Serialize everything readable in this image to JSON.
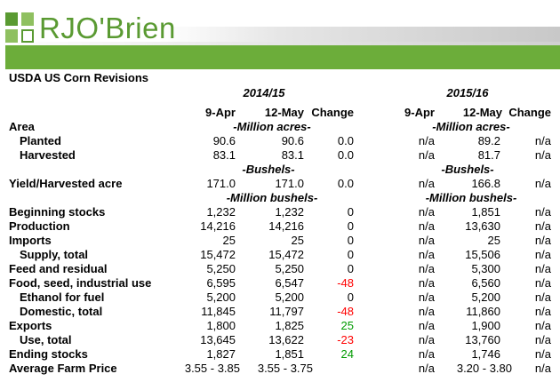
{
  "brand": {
    "name": "RJO'Brien",
    "colors": {
      "green": "#6cad3a",
      "negative": "#ff0000",
      "positive": "#009a00"
    }
  },
  "table": {
    "title": "USDA US Corn Revisions",
    "year1": "2014/15",
    "year2": "2015/16",
    "col_headers": {
      "c1": "9-Apr",
      "c2": "12-May",
      "c3": "Change",
      "c4": "9-Apr",
      "c5": "12-May",
      "c6": "Change"
    },
    "units": {
      "acres": "-Million acres-",
      "bushels": "-Bushels-",
      "mbushels": "-Million bushels-"
    },
    "rows": {
      "area": {
        "label": "Area"
      },
      "planted": {
        "label": "Planted",
        "c1": "90.6",
        "c2": "90.6",
        "c3": "0.0",
        "c4": "n/a",
        "c5": "89.2",
        "c6": "n/a"
      },
      "harvested": {
        "label": "Harvested",
        "c1": "83.1",
        "c2": "83.1",
        "c3": "0.0",
        "c4": "n/a",
        "c5": "81.7",
        "c6": "n/a"
      },
      "yield": {
        "label": "Yield/Harvested acre",
        "c1": "171.0",
        "c2": "171.0",
        "c3": "0.0",
        "c4": "n/a",
        "c5": "166.8",
        "c6": "n/a"
      },
      "beginning": {
        "label": "Beginning stocks",
        "c1": "1,232",
        "c2": "1,232",
        "c3": "0",
        "c4": "n/a",
        "c5": "1,851",
        "c6": "n/a"
      },
      "production": {
        "label": "Production",
        "c1": "14,216",
        "c2": "14,216",
        "c3": "0",
        "c4": "n/a",
        "c5": "13,630",
        "c6": "n/a"
      },
      "imports": {
        "label": "Imports",
        "c1": "25",
        "c2": "25",
        "c3": "0",
        "c4": "n/a",
        "c5": "25",
        "c6": "n/a"
      },
      "supply": {
        "label": "Supply, total",
        "c1": "15,472",
        "c2": "15,472",
        "c3": "0",
        "c4": "n/a",
        "c5": "15,506",
        "c6": "n/a"
      },
      "feed": {
        "label": "Feed and residual",
        "c1": "5,250",
        "c2": "5,250",
        "c3": "0",
        "c4": "n/a",
        "c5": "5,300",
        "c6": "n/a"
      },
      "fsi": {
        "label": "Food, seed, industrial use",
        "c1": "6,595",
        "c2": "6,547",
        "c3": "-48",
        "c4": "n/a",
        "c5": "6,560",
        "c6": "n/a"
      },
      "ethanol": {
        "label": "Ethanol for fuel",
        "c1": "5,200",
        "c2": "5,200",
        "c3": "0",
        "c4": "n/a",
        "c5": "5,200",
        "c6": "n/a"
      },
      "domestic": {
        "label": "Domestic, total",
        "c1": "11,845",
        "c2": "11,797",
        "c3": "-48",
        "c4": "n/a",
        "c5": "11,860",
        "c6": "n/a"
      },
      "exports": {
        "label": "Exports",
        "c1": "1,800",
        "c2": "1,825",
        "c3": "25",
        "c4": "n/a",
        "c5": "1,900",
        "c6": "n/a"
      },
      "use": {
        "label": "Use, total",
        "c1": "13,645",
        "c2": "13,622",
        "c3": "-23",
        "c4": "n/a",
        "c5": "13,760",
        "c6": "n/a"
      },
      "ending": {
        "label": "Ending stocks",
        "c1": "1,827",
        "c2": "1,851",
        "c3": "24",
        "c4": "n/a",
        "c5": "1,746",
        "c6": "n/a"
      },
      "price": {
        "label": "Average Farm Price",
        "c1": "3.55 - 3.85",
        "c2": "3.55 - 3.75",
        "c3": "",
        "c4": "n/a",
        "c5": "3.20 - 3.80",
        "c6": "n/a"
      }
    }
  }
}
